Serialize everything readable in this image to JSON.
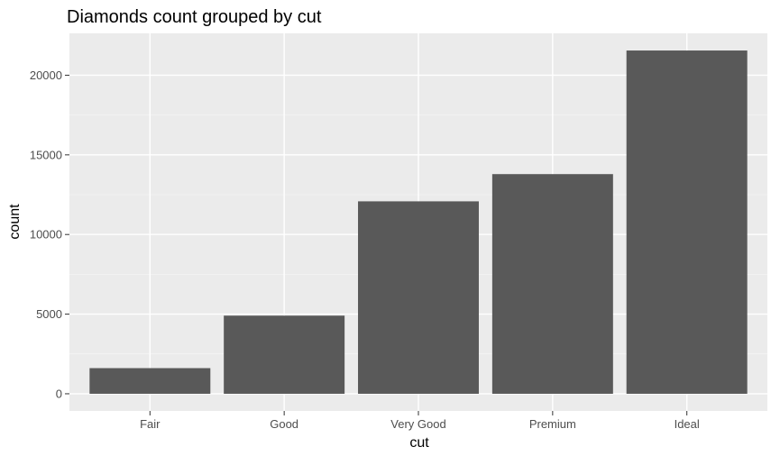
{
  "chart_data": {
    "type": "bar",
    "title": "Diamonds count grouped by cut",
    "xlabel": "cut",
    "ylabel": "count",
    "categories": [
      "Fair",
      "Good",
      "Very Good",
      "Premium",
      "Ideal"
    ],
    "values": [
      1610,
      4906,
      12082,
      13791,
      21551
    ],
    "ylim": [
      -1078,
      22629
    ],
    "yticks": [
      0,
      5000,
      10000,
      15000,
      20000
    ],
    "ytick_labels": [
      "0",
      "5000",
      "10000",
      "15000",
      "20000"
    ],
    "grid": true,
    "legend": "none",
    "colors": {
      "bar": "#595959",
      "panel_background": "#ebebeb",
      "grid_major": "#ffffff",
      "grid_minor": "#f5f5f5",
      "tick_label": "#4d4d4d",
      "axis_title": "#000000"
    }
  }
}
